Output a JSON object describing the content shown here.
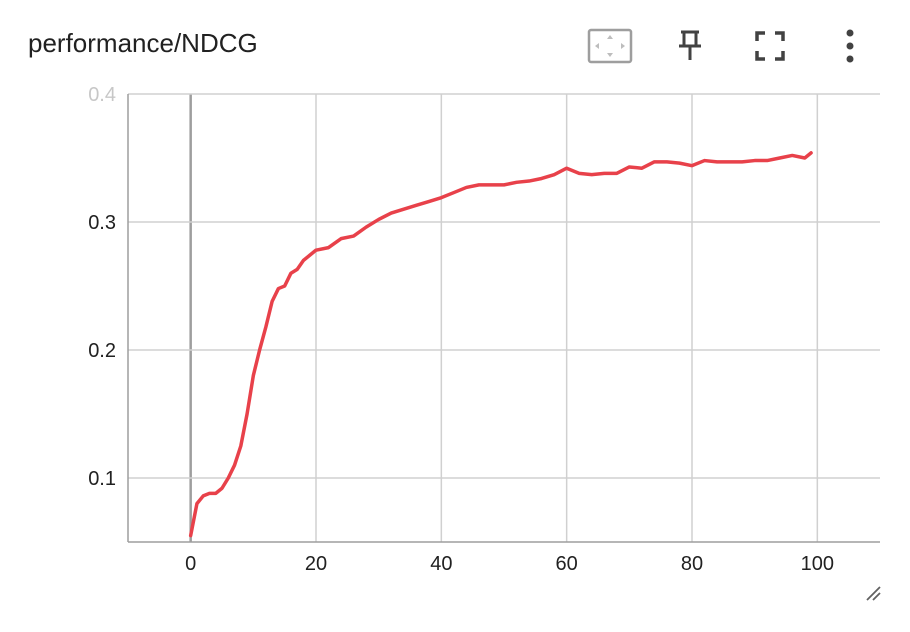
{
  "card": {
    "title": "performance/NDCG"
  },
  "toolbar": {
    "fit_icon": "fit-to-data-icon",
    "pin_icon": "pin-icon",
    "fullscreen_icon": "fullscreen-icon",
    "more_icon": "more-vert-icon"
  },
  "colors": {
    "series": "#e8414a",
    "grid": "#d0d0d0",
    "axis": "#9e9e9e"
  },
  "chart_data": {
    "type": "line",
    "title": "",
    "xlabel": "",
    "ylabel": "",
    "xlim": [
      -10,
      110
    ],
    "ylim": [
      0.05,
      0.4
    ],
    "xticks": [
      0,
      20,
      40,
      60,
      80,
      100
    ],
    "yticks": [
      0.1,
      0.2,
      0.3,
      0.4
    ],
    "grid": true,
    "series": [
      {
        "name": "",
        "x": [
          0,
          1,
          2,
          3,
          4,
          5,
          6,
          7,
          8,
          9,
          10,
          11,
          12,
          13,
          14,
          15,
          16,
          17,
          18,
          19,
          20,
          22,
          24,
          26,
          28,
          30,
          32,
          34,
          36,
          38,
          40,
          42,
          44,
          46,
          48,
          50,
          52,
          54,
          56,
          58,
          60,
          62,
          64,
          66,
          68,
          70,
          72,
          74,
          76,
          78,
          80,
          82,
          84,
          86,
          88,
          90,
          92,
          94,
          96,
          98,
          99
        ],
        "y": [
          0.055,
          0.08,
          0.086,
          0.088,
          0.088,
          0.092,
          0.1,
          0.11,
          0.125,
          0.15,
          0.18,
          0.2,
          0.218,
          0.238,
          0.248,
          0.25,
          0.26,
          0.263,
          0.27,
          0.274,
          0.278,
          0.28,
          0.287,
          0.289,
          0.296,
          0.302,
          0.307,
          0.31,
          0.313,
          0.316,
          0.319,
          0.323,
          0.327,
          0.329,
          0.329,
          0.329,
          0.331,
          0.332,
          0.334,
          0.337,
          0.342,
          0.338,
          0.337,
          0.338,
          0.338,
          0.343,
          0.342,
          0.347,
          0.347,
          0.346,
          0.344,
          0.348,
          0.347,
          0.347,
          0.347,
          0.348,
          0.348,
          0.35,
          0.352,
          0.35,
          0.354
        ]
      }
    ]
  }
}
